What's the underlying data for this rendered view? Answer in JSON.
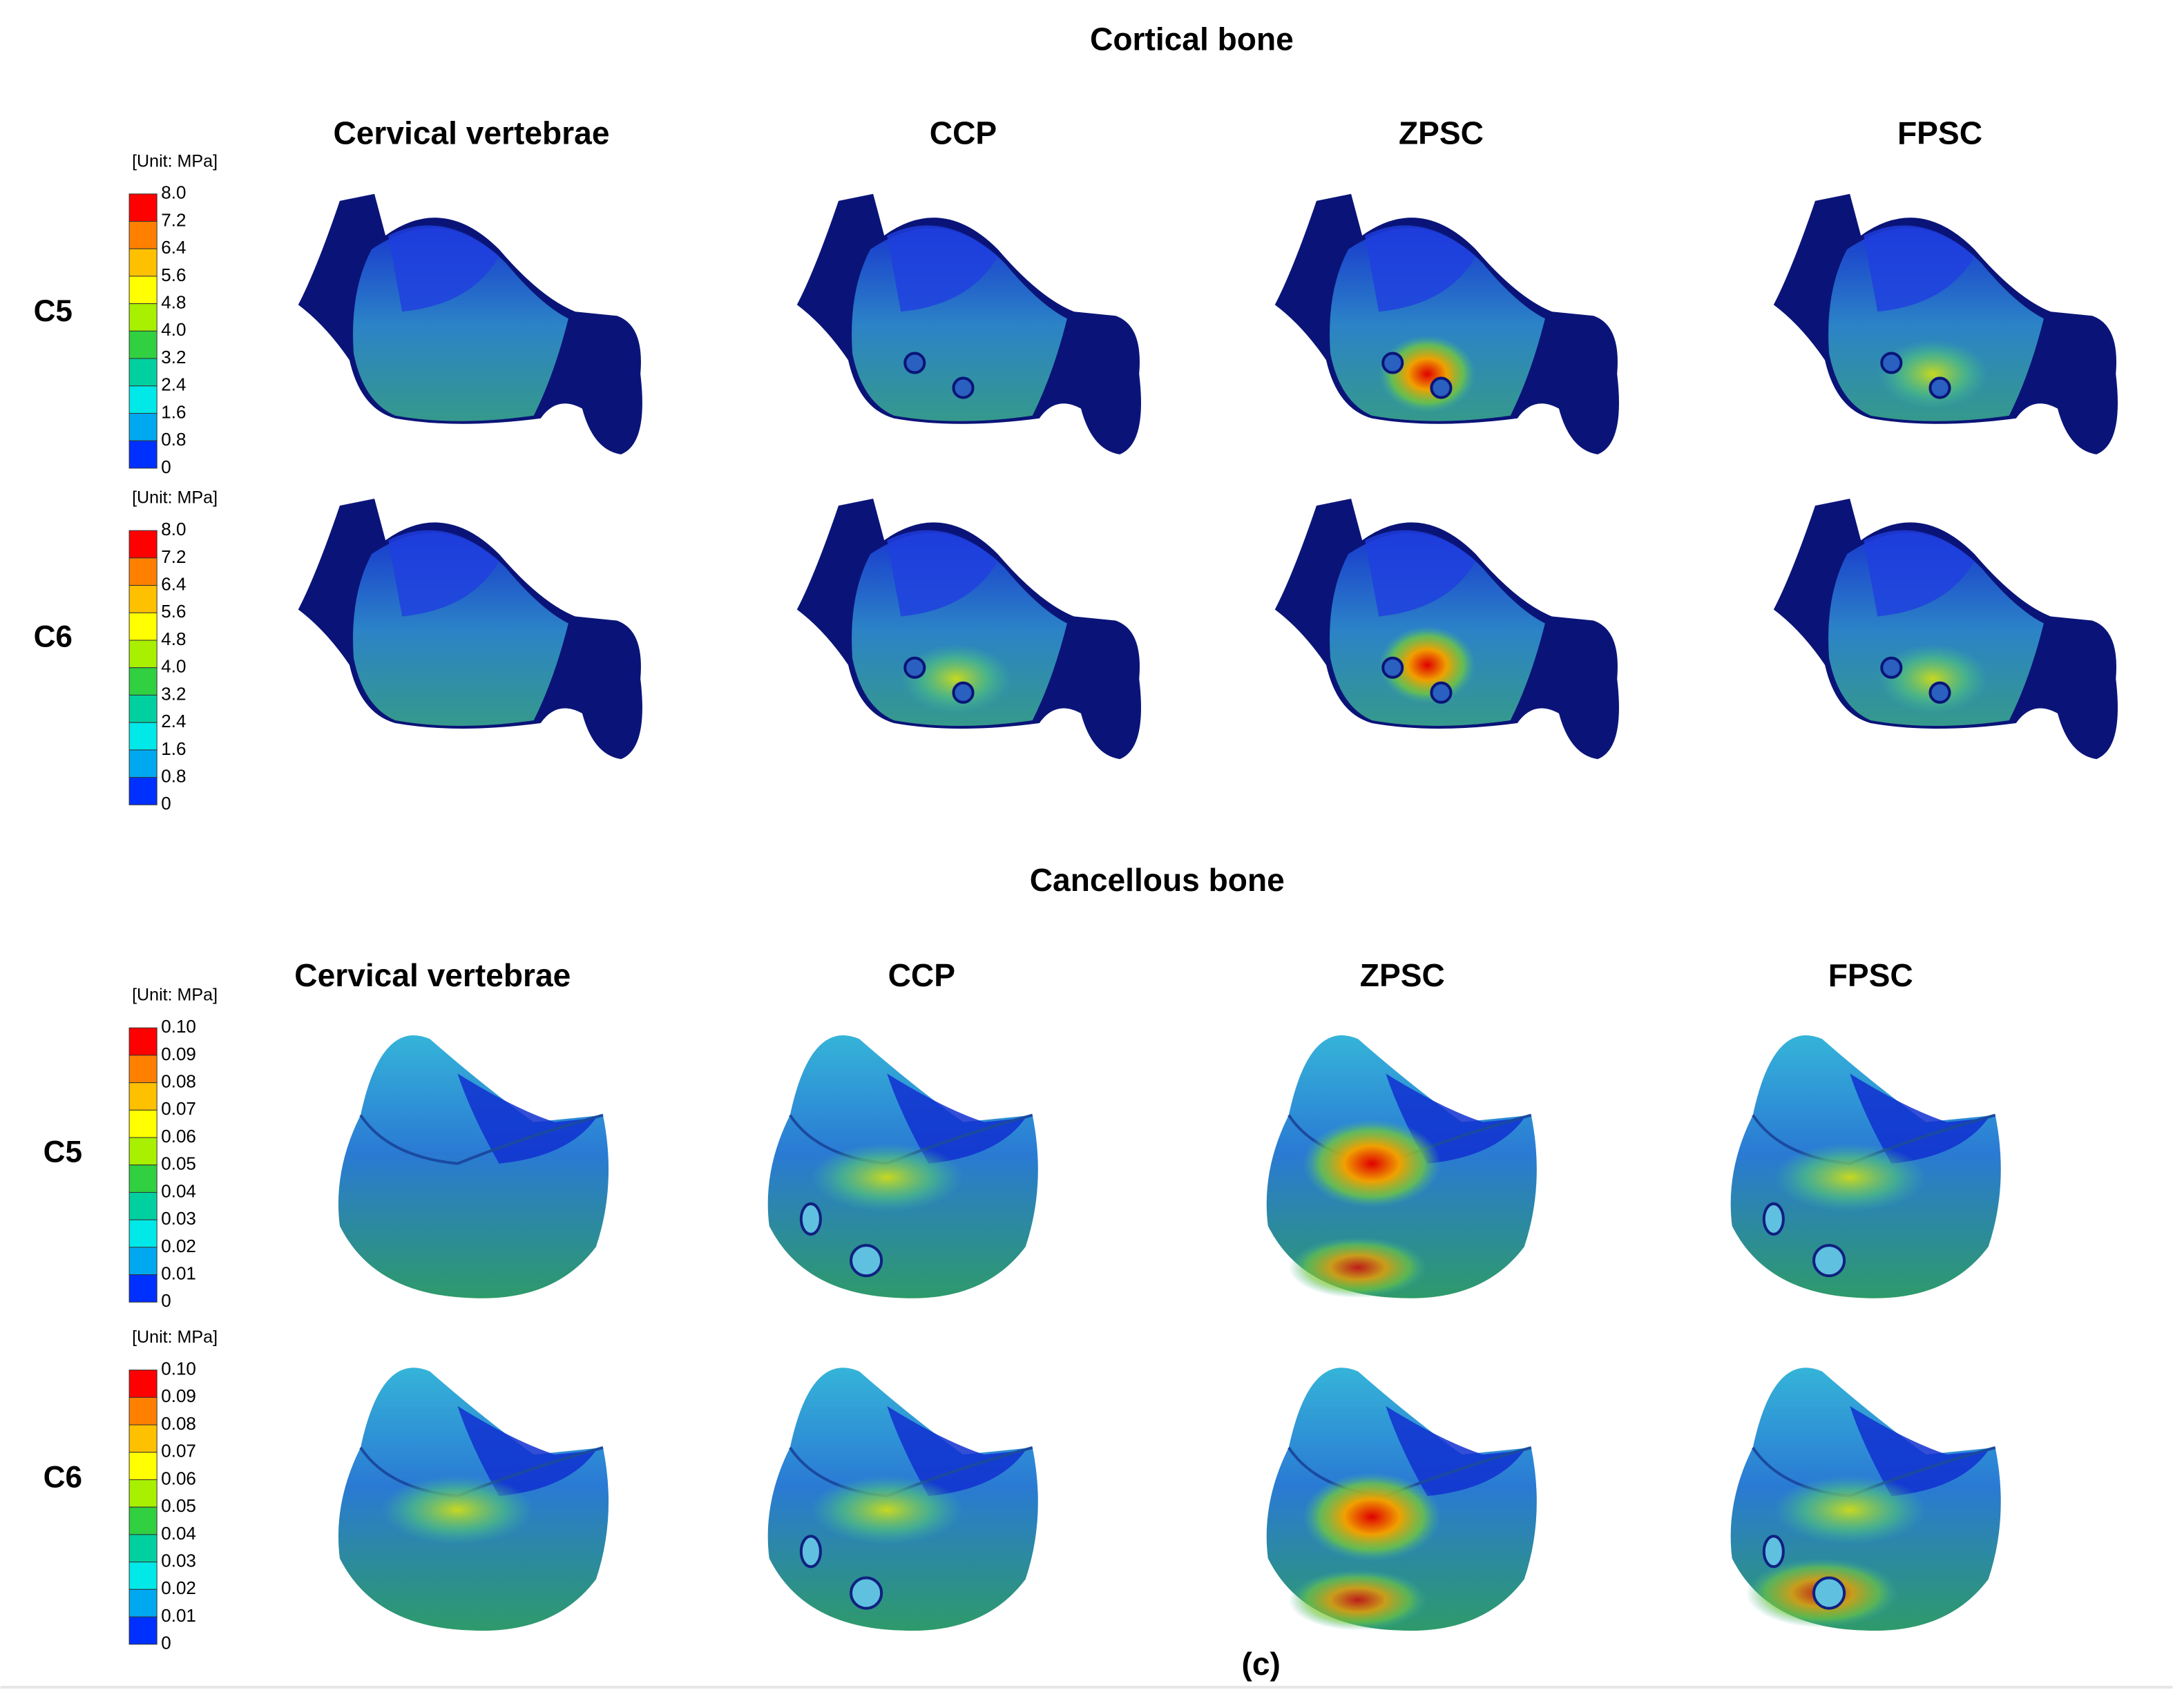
{
  "sections": [
    {
      "title": "Cortical bone",
      "columns": [
        "Cervical vertebrae",
        "CCP",
        "ZPSC",
        "FPSC"
      ],
      "rows": [
        {
          "label": "C5",
          "legend": {
            "unit": "[Unit: MPa]",
            "ticks": [
              "8.0",
              "7.2",
              "6.4",
              "5.6",
              "4.8",
              "4.0",
              "3.2",
              "2.4",
              "1.6",
              "0.8",
              "0"
            ]
          }
        },
        {
          "label": "C6",
          "legend": {
            "unit": "[Unit: MPa]",
            "ticks": [
              "8.0",
              "7.2",
              "6.4",
              "5.6",
              "4.8",
              "4.0",
              "3.2",
              "2.4",
              "1.6",
              "0.8",
              "0"
            ]
          }
        }
      ]
    },
    {
      "title": "Cancellous bone",
      "columns": [
        "Cervical vertebrae",
        "CCP",
        "ZPSC",
        "FPSC"
      ],
      "rows": [
        {
          "label": "C5",
          "legend": {
            "unit": "[Unit: MPa]",
            "ticks": [
              "0.10",
              "0.09",
              "0.08",
              "0.07",
              "0.06",
              "0.05",
              "0.04",
              "0.03",
              "0.02",
              "0.01",
              "0"
            ]
          }
        },
        {
          "label": "C6",
          "legend": {
            "unit": "[Unit: MPa]",
            "ticks": [
              "0.10",
              "0.09",
              "0.08",
              "0.07",
              "0.06",
              "0.05",
              "0.04",
              "0.03",
              "0.02",
              "0.01",
              "0"
            ]
          }
        }
      ]
    }
  ],
  "caption": "(c)"
}
